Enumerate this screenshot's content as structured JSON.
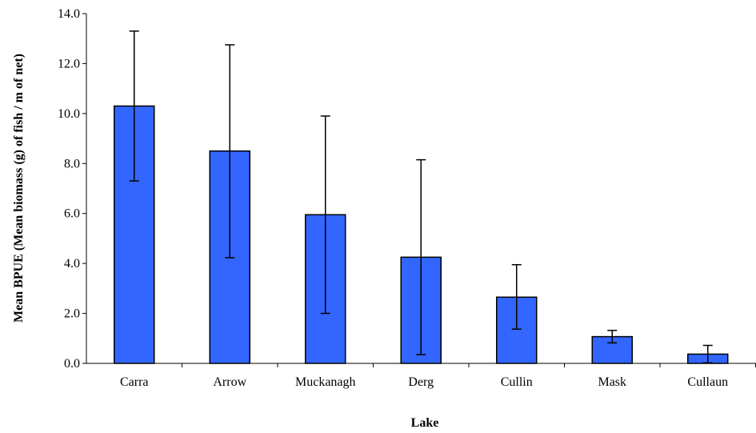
{
  "chart_data": {
    "type": "bar",
    "title": "",
    "xlabel": "Lake",
    "ylabel": "Mean BPUE (Mean biomass (g) of fish / m of net)",
    "categories": [
      "Carra",
      "Arrow",
      "Muckanagh",
      "Derg",
      "Cullin",
      "Mask",
      "Cullaun"
    ],
    "values": [
      10.3,
      8.5,
      5.95,
      4.25,
      2.65,
      1.07,
      0.37
    ],
    "error_upper": [
      13.3,
      12.75,
      9.9,
      8.15,
      3.95,
      1.32,
      0.72
    ],
    "error_lower": [
      7.3,
      4.23,
      2.0,
      0.35,
      1.37,
      0.82,
      0.02
    ],
    "ylim": [
      0,
      14
    ],
    "yticks": [
      "0.0",
      "2.0",
      "4.0",
      "6.0",
      "8.0",
      "10.0",
      "12.0",
      "14.0"
    ],
    "bar_color": "#3366ff",
    "grid": false,
    "legend": "none"
  }
}
